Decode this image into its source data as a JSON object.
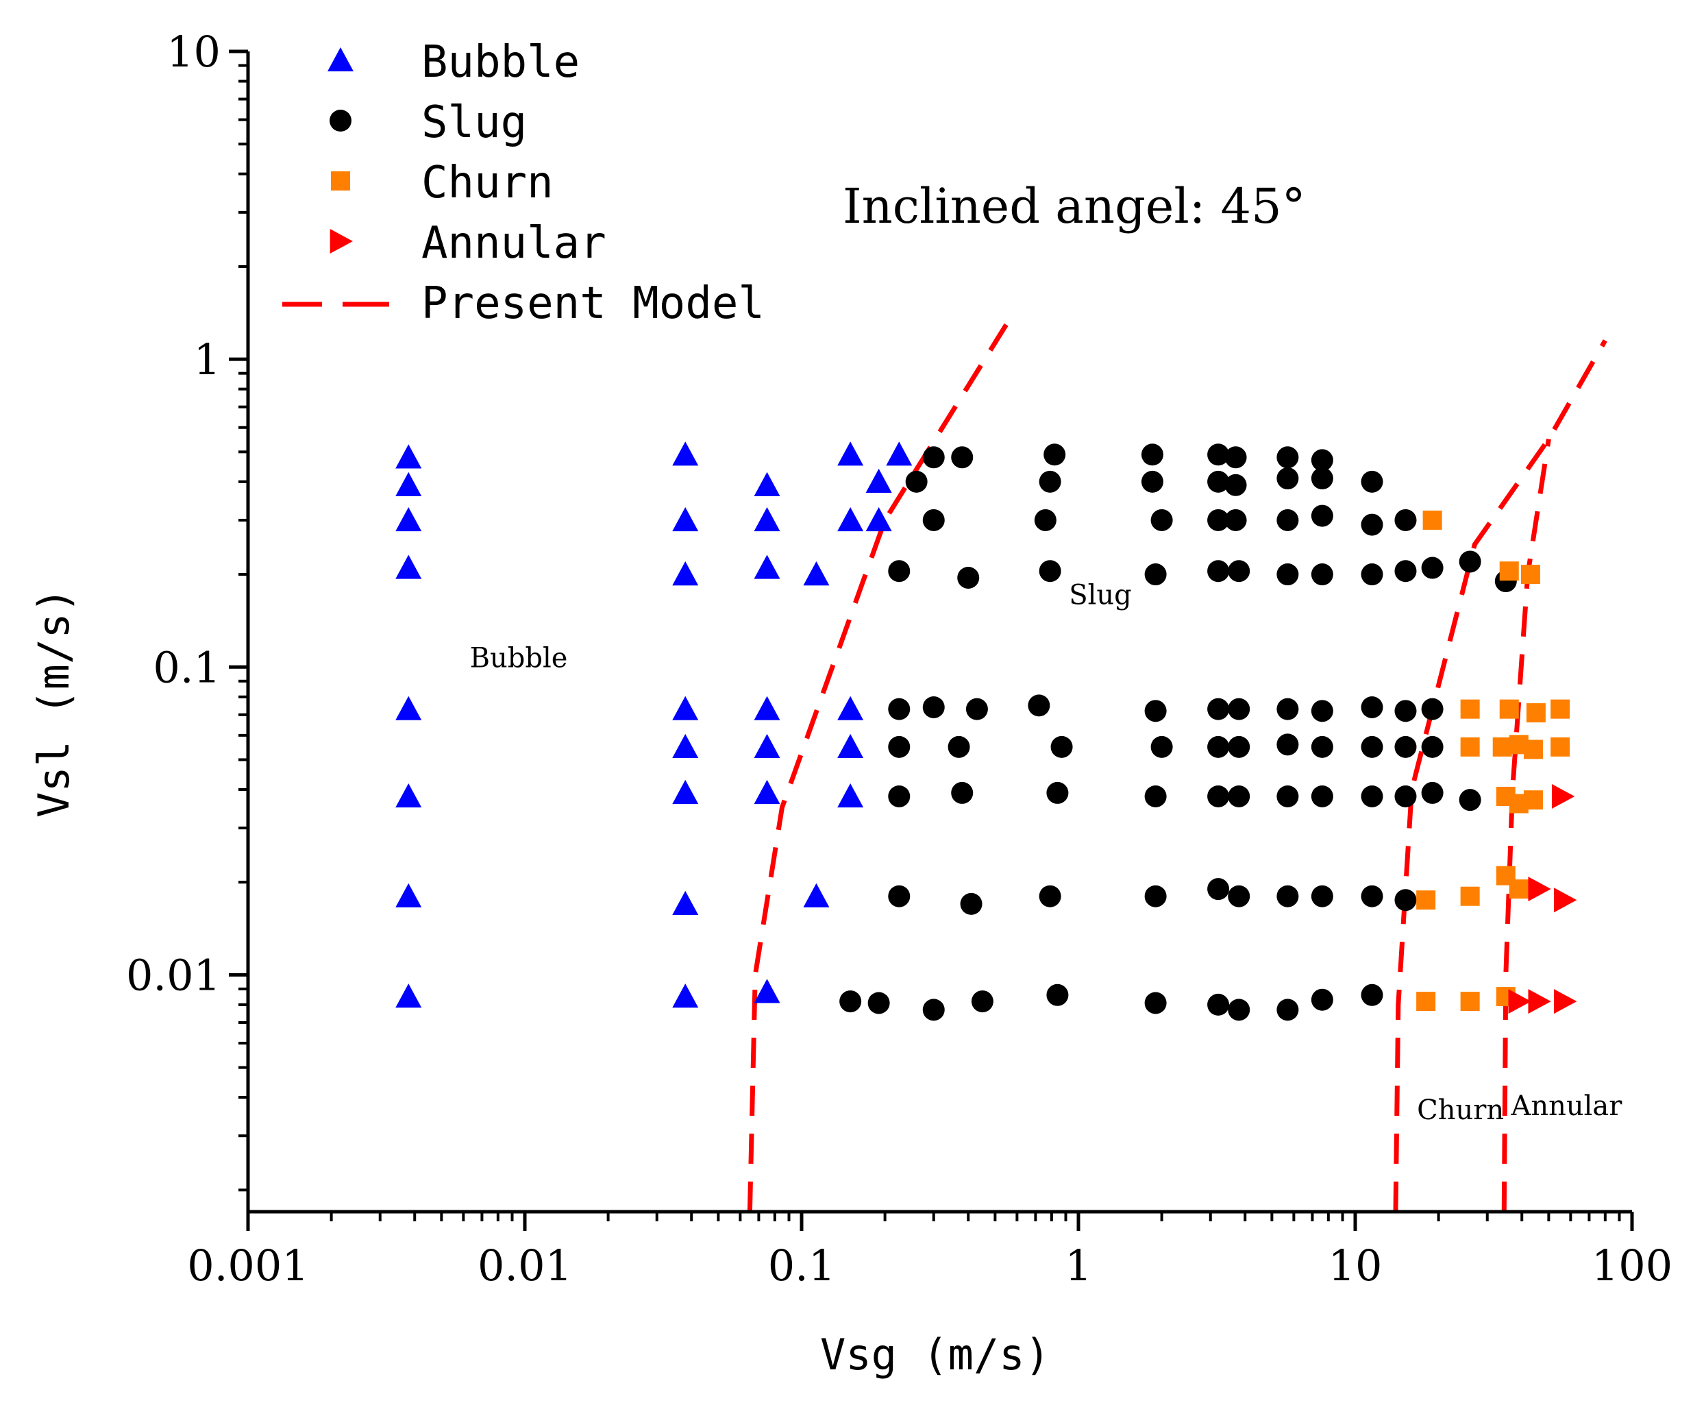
{
  "chart_data": {
    "type": "scatter",
    "title": "Inclined angel: 45°",
    "xlabel": "Vsg (m/s)",
    "ylabel": "Vsl (m/s)",
    "xscale": "log",
    "yscale": "log",
    "xlim": [
      0.001,
      100
    ],
    "ylim": [
      0.0017,
      10
    ],
    "x_ticks": [
      {
        "value": 0.001,
        "label": "0.001"
      },
      {
        "value": 0.01,
        "label": "0.01"
      },
      {
        "value": 0.1,
        "label": "0.1"
      },
      {
        "value": 1,
        "label": "1"
      },
      {
        "value": 10,
        "label": "10"
      },
      {
        "value": 100,
        "label": "100"
      }
    ],
    "y_ticks": [
      {
        "value": 0.01,
        "label": "0.01"
      },
      {
        "value": 0.1,
        "label": "0.1"
      },
      {
        "value": 1,
        "label": "1"
      },
      {
        "value": 10,
        "label": "10"
      }
    ],
    "legend_position": "top-left",
    "grid": false,
    "series": [
      {
        "name": "Bubble",
        "marker": "triangle-up",
        "color": "#0000ff",
        "points": [
          [
            0.0038,
            0.48
          ],
          [
            0.0038,
            0.39
          ],
          [
            0.0038,
            0.3
          ],
          [
            0.0038,
            0.21
          ],
          [
            0.0038,
            0.073
          ],
          [
            0.0038,
            0.038
          ],
          [
            0.0038,
            0.018
          ],
          [
            0.0038,
            0.0085
          ],
          [
            0.038,
            0.49
          ],
          [
            0.038,
            0.3
          ],
          [
            0.038,
            0.2
          ],
          [
            0.038,
            0.073
          ],
          [
            0.038,
            0.055
          ],
          [
            0.038,
            0.039
          ],
          [
            0.038,
            0.017
          ],
          [
            0.038,
            0.0085
          ],
          [
            0.075,
            0.39
          ],
          [
            0.075,
            0.3
          ],
          [
            0.075,
            0.21
          ],
          [
            0.075,
            0.073
          ],
          [
            0.075,
            0.055
          ],
          [
            0.075,
            0.039
          ],
          [
            0.075,
            0.0088
          ],
          [
            0.113,
            0.2
          ],
          [
            0.113,
            0.018
          ],
          [
            0.15,
            0.49
          ],
          [
            0.15,
            0.3
          ],
          [
            0.15,
            0.073
          ],
          [
            0.15,
            0.055
          ],
          [
            0.15,
            0.038
          ],
          [
            0.19,
            0.4
          ],
          [
            0.19,
            0.3
          ],
          [
            0.225,
            0.49
          ]
        ]
      },
      {
        "name": "Slug",
        "marker": "circle",
        "color": "#000000",
        "points": [
          [
            0.3,
            0.48
          ],
          [
            0.38,
            0.48
          ],
          [
            0.82,
            0.49
          ],
          [
            1.85,
            0.49
          ],
          [
            3.2,
            0.49
          ],
          [
            3.7,
            0.48
          ],
          [
            5.7,
            0.48
          ],
          [
            7.6,
            0.47
          ],
          [
            0.26,
            0.4
          ],
          [
            0.79,
            0.4
          ],
          [
            1.85,
            0.4
          ],
          [
            3.2,
            0.4
          ],
          [
            3.7,
            0.39
          ],
          [
            5.7,
            0.41
          ],
          [
            7.6,
            0.41
          ],
          [
            11.5,
            0.4
          ],
          [
            0.3,
            0.3
          ],
          [
            0.76,
            0.3
          ],
          [
            2.0,
            0.3
          ],
          [
            3.2,
            0.3
          ],
          [
            3.7,
            0.3
          ],
          [
            5.7,
            0.3
          ],
          [
            7.6,
            0.31
          ],
          [
            11.5,
            0.29
          ],
          [
            15.2,
            0.3
          ],
          [
            0.225,
            0.205
          ],
          [
            0.4,
            0.195
          ],
          [
            0.79,
            0.205
          ],
          [
            1.9,
            0.2
          ],
          [
            3.2,
            0.205
          ],
          [
            3.8,
            0.205
          ],
          [
            5.7,
            0.2
          ],
          [
            7.6,
            0.2
          ],
          [
            11.5,
            0.2
          ],
          [
            15.2,
            0.205
          ],
          [
            19.0,
            0.21
          ],
          [
            26.0,
            0.22
          ],
          [
            35.0,
            0.19
          ],
          [
            0.225,
            0.073
          ],
          [
            0.3,
            0.074
          ],
          [
            0.43,
            0.073
          ],
          [
            0.72,
            0.075
          ],
          [
            1.9,
            0.072
          ],
          [
            3.2,
            0.073
          ],
          [
            3.8,
            0.073
          ],
          [
            5.7,
            0.073
          ],
          [
            7.6,
            0.072
          ],
          [
            11.5,
            0.074
          ],
          [
            15.2,
            0.072
          ],
          [
            19.0,
            0.073
          ],
          [
            0.225,
            0.055
          ],
          [
            0.37,
            0.055
          ],
          [
            0.87,
            0.055
          ],
          [
            2.0,
            0.055
          ],
          [
            3.2,
            0.055
          ],
          [
            3.8,
            0.055
          ],
          [
            5.7,
            0.056
          ],
          [
            7.6,
            0.055
          ],
          [
            11.5,
            0.055
          ],
          [
            15.2,
            0.055
          ],
          [
            19.0,
            0.055
          ],
          [
            0.225,
            0.038
          ],
          [
            0.38,
            0.039
          ],
          [
            0.84,
            0.039
          ],
          [
            1.9,
            0.038
          ],
          [
            3.2,
            0.038
          ],
          [
            3.8,
            0.038
          ],
          [
            5.7,
            0.038
          ],
          [
            7.6,
            0.038
          ],
          [
            11.5,
            0.038
          ],
          [
            15.2,
            0.038
          ],
          [
            19.0,
            0.039
          ],
          [
            26.0,
            0.037
          ],
          [
            0.225,
            0.018
          ],
          [
            0.41,
            0.017
          ],
          [
            0.79,
            0.018
          ],
          [
            1.9,
            0.018
          ],
          [
            3.2,
            0.019
          ],
          [
            3.8,
            0.018
          ],
          [
            5.7,
            0.018
          ],
          [
            7.6,
            0.018
          ],
          [
            11.5,
            0.018
          ],
          [
            15.2,
            0.0175
          ],
          [
            0.15,
            0.0082
          ],
          [
            0.19,
            0.0081
          ],
          [
            0.3,
            0.0077
          ],
          [
            0.45,
            0.0082
          ],
          [
            0.84,
            0.0086
          ],
          [
            1.9,
            0.0081
          ],
          [
            3.2,
            0.008
          ],
          [
            3.8,
            0.0077
          ],
          [
            5.7,
            0.0077
          ],
          [
            7.6,
            0.0083
          ],
          [
            11.5,
            0.0086
          ]
        ]
      },
      {
        "name": "Churn",
        "marker": "square",
        "color": "#ff8000",
        "points": [
          [
            19.0,
            0.3
          ],
          [
            36.0,
            0.205
          ],
          [
            43.0,
            0.2
          ],
          [
            26.0,
            0.073
          ],
          [
            36.0,
            0.073
          ],
          [
            45.0,
            0.071
          ],
          [
            55.0,
            0.073
          ],
          [
            26.0,
            0.055
          ],
          [
            34.0,
            0.055
          ],
          [
            39.0,
            0.056
          ],
          [
            44.0,
            0.054
          ],
          [
            55.0,
            0.055
          ],
          [
            35.0,
            0.038
          ],
          [
            39.0,
            0.036
          ],
          [
            44.0,
            0.037
          ],
          [
            18.0,
            0.0175
          ],
          [
            26.0,
            0.018
          ],
          [
            35.0,
            0.021
          ],
          [
            39.0,
            0.019
          ],
          [
            18.0,
            0.0082
          ],
          [
            26.0,
            0.0082
          ],
          [
            35.0,
            0.0085
          ]
        ]
      },
      {
        "name": "Annular",
        "marker": "triangle-right",
        "color": "#ff0000",
        "points": [
          [
            56.0,
            0.038
          ],
          [
            46.0,
            0.019
          ],
          [
            57.0,
            0.0175
          ],
          [
            39.0,
            0.0082
          ],
          [
            46.0,
            0.0082
          ],
          [
            57.0,
            0.0082
          ]
        ]
      }
    ],
    "model_lines": {
      "name": "Present Model",
      "color": "#ff0000",
      "style": "dashed",
      "lines": [
        [
          [
            0.065,
            0.0017
          ],
          [
            0.068,
            0.01
          ],
          [
            0.085,
            0.035
          ],
          [
            0.2,
            0.3
          ],
          [
            0.55,
            1.3
          ]
        ],
        [
          [
            14.0,
            0.0017
          ],
          [
            14.3,
            0.008
          ],
          [
            16.0,
            0.04
          ],
          [
            27.0,
            0.25
          ],
          [
            50.0,
            0.55
          ],
          [
            80.0,
            1.15
          ]
        ],
        [
          [
            34.5,
            0.0017
          ],
          [
            35.0,
            0.01
          ],
          [
            37.0,
            0.04
          ],
          [
            42.0,
            0.2
          ],
          [
            50.0,
            0.55
          ]
        ]
      ]
    },
    "region_labels": [
      {
        "text": "Bubble",
        "x": 0.0095,
        "y": 0.1
      },
      {
        "text": "Slug",
        "x": 1.2,
        "y": 0.16
      },
      {
        "text": "Churn",
        "x": 24.0,
        "y": 0.0034
      },
      {
        "text": "Annular",
        "x": 58.0,
        "y": 0.0035
      }
    ]
  }
}
